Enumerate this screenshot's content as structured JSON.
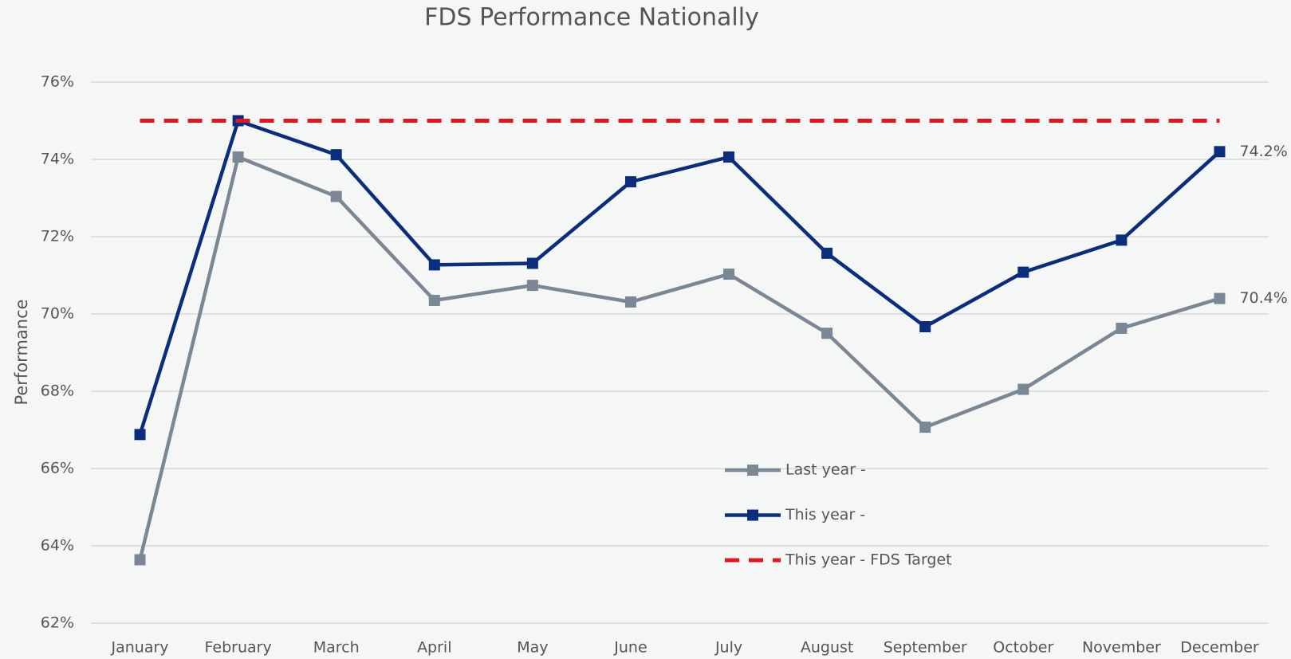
{
  "chart_data": {
    "type": "line",
    "title": "FDS Performance Nationally",
    "y_label": "Performance",
    "categories": [
      "January",
      "February",
      "March",
      "April",
      "May",
      "June",
      "July",
      "August",
      "September",
      "October",
      "November",
      "December"
    ],
    "series": [
      {
        "name": "Last year -",
        "color": "#7a8896",
        "values": [
          63.64,
          74.06,
          73.04,
          70.35,
          70.74,
          70.31,
          71.03,
          69.5,
          67.07,
          68.05,
          69.63,
          70.4
        ],
        "value_labels": [
          null,
          null,
          null,
          null,
          null,
          null,
          null,
          null,
          null,
          null,
          null,
          "70.4%"
        ]
      },
      {
        "name": "This year -",
        "color": "#0a2d7e",
        "values": [
          66.88,
          75.0,
          74.12,
          71.27,
          71.31,
          73.42,
          74.06,
          71.57,
          69.67,
          71.08,
          71.91,
          74.2
        ],
        "value_labels": [
          null,
          null,
          null,
          null,
          null,
          null,
          null,
          null,
          null,
          null,
          null,
          "74.2%"
        ]
      },
      {
        "name": "This year - FDS Target",
        "color": "#e8141b",
        "dashed": true,
        "values": [
          75,
          75,
          75,
          75,
          75,
          75,
          75,
          75,
          75,
          75,
          75,
          75
        ]
      }
    ],
    "ylim": [
      62,
      76
    ],
    "yticks": [
      {
        "value": 62,
        "label": "62%"
      },
      {
        "value": 64,
        "label": "64%"
      },
      {
        "value": 66,
        "label": "66%"
      },
      {
        "value": 68,
        "label": "68%"
      },
      {
        "value": 70,
        "label": "70%"
      },
      {
        "value": 72,
        "label": "72%"
      },
      {
        "value": 74,
        "label": "74%"
      },
      {
        "value": 76,
        "label": "76%"
      }
    ],
    "grid": true
  }
}
